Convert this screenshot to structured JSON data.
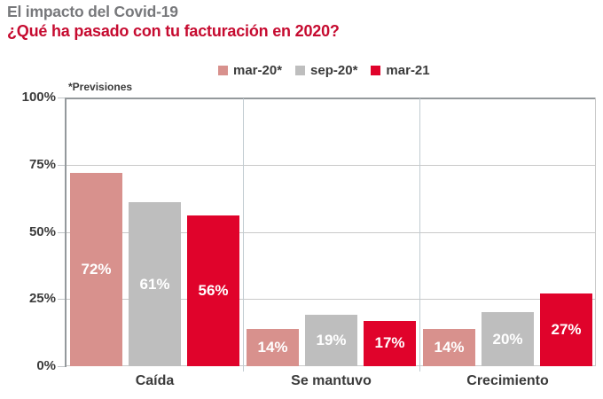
{
  "header": {
    "title": "El impacto del Covid-19",
    "subtitle": "¿Qué ha pasado con tu facturación en 2020?"
  },
  "colors": {
    "title_gray": "#77787b",
    "subtitle_red": "#c60b30",
    "label_dark": "#3b3b3b",
    "bar_label_white": "#ffffff",
    "grid": "#c9c9c9",
    "axis": "#94999c",
    "tick": "#c0c4c7",
    "separator": "#c2ccd2"
  },
  "chart_data": {
    "type": "bar",
    "title": "¿Qué ha pasado con tu facturación en 2020?",
    "note": "*Previsiones",
    "categories": [
      "Caída",
      "Se mantuvo",
      "Crecimiento"
    ],
    "series": [
      {
        "name": "mar-20*",
        "color": "#d8918d",
        "values": [
          72,
          14,
          14
        ]
      },
      {
        "name": "sep-20*",
        "color": "#bebebe",
        "values": [
          61,
          19,
          20
        ]
      },
      {
        "name": "mar-21",
        "color": "#e0032b",
        "values": [
          56,
          17,
          27
        ]
      }
    ],
    "value_suffix": "%",
    "yticks": [
      0,
      25,
      50,
      75,
      100
    ],
    "ylim": [
      0,
      100
    ],
    "grid": "horizontal",
    "legend_position": "top",
    "value_labels": "inside-center-white"
  }
}
